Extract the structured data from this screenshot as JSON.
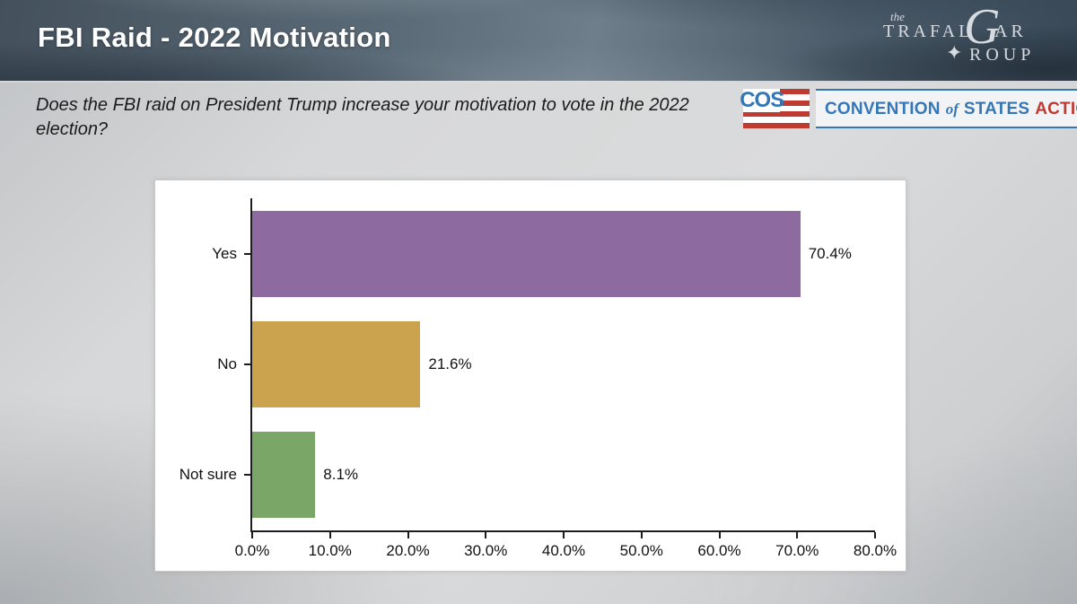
{
  "slide": {
    "title": "FBI Raid - 2022 Motivation",
    "question": "Does the FBI raid on President Trump increase your motivation to vote in the 2022 election?"
  },
  "trafalgar_logo": {
    "the": "the",
    "trafal": "TRAFAL",
    "g": "G",
    "ar": "AR",
    "star": "✦",
    "roup": "ROUP"
  },
  "cos_logo": {
    "acronym": "COS",
    "word1": "CONVENTION",
    "word2": "of",
    "word3": "STATES",
    "word4": "ACTION",
    "colors": {
      "blue": "#3577b5",
      "red": "#bf3a30"
    }
  },
  "chart_data": {
    "type": "bar",
    "orientation": "horizontal",
    "title": "",
    "categories": [
      "Yes",
      "No",
      "Not sure"
    ],
    "values": [
      70.4,
      21.6,
      8.1
    ],
    "value_labels": [
      "70.4%",
      "21.6%",
      "8.1%"
    ],
    "bar_colors": [
      "#8d6aa0",
      "#cba24e",
      "#7aa768"
    ],
    "xlim": [
      0,
      80
    ],
    "x_tick_labels": [
      "0.0%",
      "10.0%",
      "20.0%",
      "30.0%",
      "40.0%",
      "50.0%",
      "60.0%",
      "70.0%",
      "80.0%"
    ],
    "grid": false,
    "legend": false,
    "axis_color": "#1c1c1c",
    "plot_background": "#ffffff"
  }
}
